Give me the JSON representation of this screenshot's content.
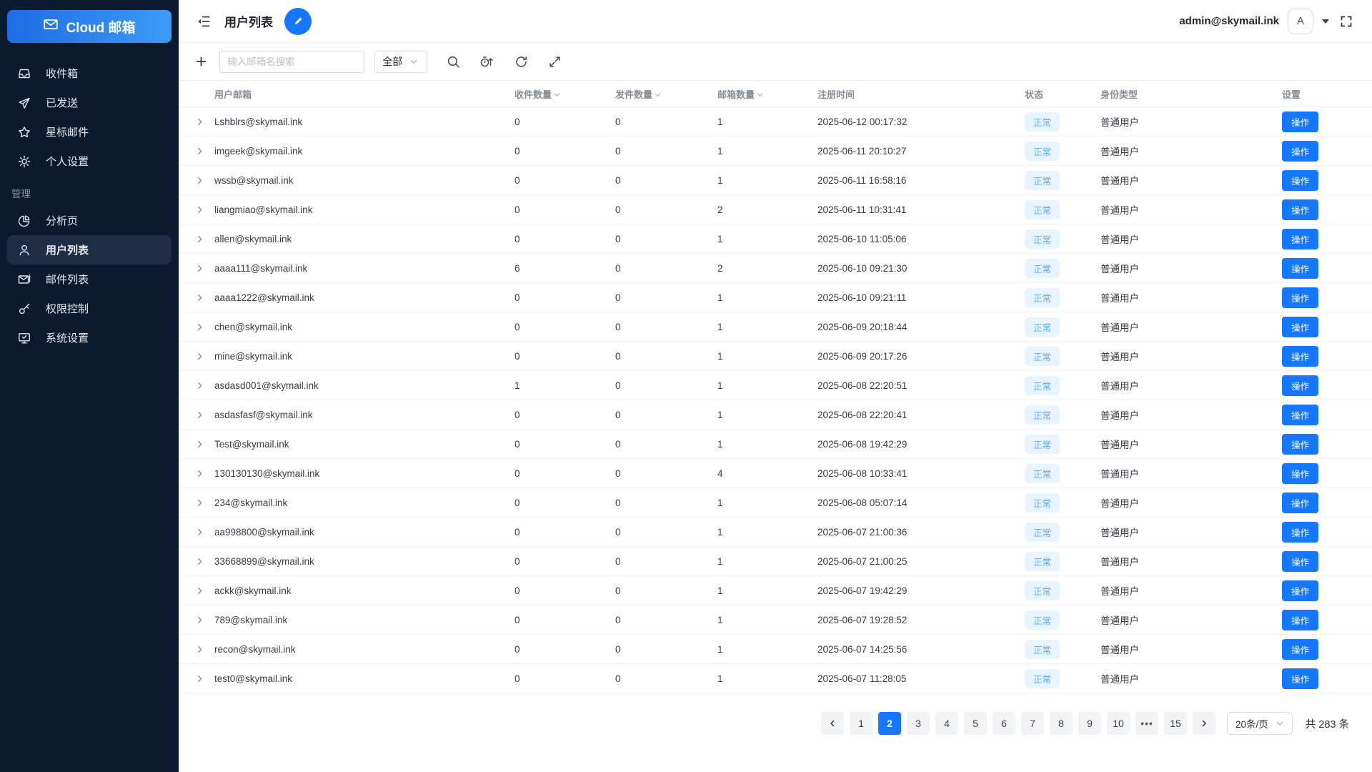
{
  "colors": {
    "accent": "#1677ff",
    "sidebar_bg": "#0c1a30",
    "logo_gradient_start": "#1f6be4",
    "logo_gradient_end": "#3c9cf5",
    "status_badge_bg": "#e8f4ff",
    "status_badge_text": "#64a8ee"
  },
  "sidebar": {
    "logo_label": "Cloud 邮箱",
    "items": [
      {
        "label": "收件箱",
        "icon": "inbox-icon"
      },
      {
        "label": "已发送",
        "icon": "send-icon"
      },
      {
        "label": "星标邮件",
        "icon": "star-icon"
      },
      {
        "label": "个人设置",
        "icon": "gear-icon"
      }
    ],
    "section_label": "管理",
    "admin_items": [
      {
        "label": "分析页",
        "icon": "pie-chart-icon",
        "active": false
      },
      {
        "label": "用户列表",
        "icon": "user-icon",
        "active": true
      },
      {
        "label": "邮件列表",
        "icon": "mail-list-icon",
        "active": false
      },
      {
        "label": "权限控制",
        "icon": "key-icon",
        "active": false
      },
      {
        "label": "系统设置",
        "icon": "system-settings-icon",
        "active": false
      }
    ]
  },
  "topbar": {
    "title": "用户列表",
    "account_email": "admin@skymail.ink",
    "avatar_letter": "A"
  },
  "toolbar": {
    "add_label": "+",
    "search_placeholder": "输入邮箱名搜索",
    "filter_value": "全部"
  },
  "table": {
    "headers": [
      {
        "label": "用户邮箱",
        "sortable": false
      },
      {
        "label": "收件数量",
        "sortable": true
      },
      {
        "label": "发件数量",
        "sortable": true
      },
      {
        "label": "邮箱数量",
        "sortable": true
      },
      {
        "label": "注册时间",
        "sortable": false
      },
      {
        "label": "状态",
        "sortable": false
      },
      {
        "label": "身份类型",
        "sortable": false
      },
      {
        "label": "设置",
        "sortable": false
      }
    ],
    "action_label": "操作",
    "rows": [
      {
        "email": "Lshblrs@skymail.ink",
        "inbox_count": "0",
        "sent_count": "0",
        "mailbox_count": "1",
        "registered_at": "2025-06-12 00:17:32",
        "status": "正常",
        "role": "普通用户"
      },
      {
        "email": "imgeek@skymail.ink",
        "inbox_count": "0",
        "sent_count": "0",
        "mailbox_count": "1",
        "registered_at": "2025-06-11 20:10:27",
        "status": "正常",
        "role": "普通用户"
      },
      {
        "email": "wssb@skymail.ink",
        "inbox_count": "0",
        "sent_count": "0",
        "mailbox_count": "1",
        "registered_at": "2025-06-11 16:58:16",
        "status": "正常",
        "role": "普通用户"
      },
      {
        "email": "liangmiao@skymail.ink",
        "inbox_count": "0",
        "sent_count": "0",
        "mailbox_count": "2",
        "registered_at": "2025-06-11 10:31:41",
        "status": "正常",
        "role": "普通用户"
      },
      {
        "email": "allen@skymail.ink",
        "inbox_count": "0",
        "sent_count": "0",
        "mailbox_count": "1",
        "registered_at": "2025-06-10 11:05:06",
        "status": "正常",
        "role": "普通用户"
      },
      {
        "email": "aaaa111@skymail.ink",
        "inbox_count": "6",
        "sent_count": "0",
        "mailbox_count": "2",
        "registered_at": "2025-06-10 09:21:30",
        "status": "正常",
        "role": "普通用户"
      },
      {
        "email": "aaaa1222@skymail.ink",
        "inbox_count": "0",
        "sent_count": "0",
        "mailbox_count": "1",
        "registered_at": "2025-06-10 09:21:11",
        "status": "正常",
        "role": "普通用户"
      },
      {
        "email": "chen@skymail.ink",
        "inbox_count": "0",
        "sent_count": "0",
        "mailbox_count": "1",
        "registered_at": "2025-06-09 20:18:44",
        "status": "正常",
        "role": "普通用户"
      },
      {
        "email": "mine@skymail.ink",
        "inbox_count": "0",
        "sent_count": "0",
        "mailbox_count": "1",
        "registered_at": "2025-06-09 20:17:26",
        "status": "正常",
        "role": "普通用户"
      },
      {
        "email": "asdasd001@skymail.ink",
        "inbox_count": "1",
        "sent_count": "0",
        "mailbox_count": "1",
        "registered_at": "2025-06-08 22:20:51",
        "status": "正常",
        "role": "普通用户"
      },
      {
        "email": "asdasfasf@skymail.ink",
        "inbox_count": "0",
        "sent_count": "0",
        "mailbox_count": "1",
        "registered_at": "2025-06-08 22:20:41",
        "status": "正常",
        "role": "普通用户"
      },
      {
        "email": "Test@skymail.ink",
        "inbox_count": "0",
        "sent_count": "0",
        "mailbox_count": "1",
        "registered_at": "2025-06-08 19:42:29",
        "status": "正常",
        "role": "普通用户"
      },
      {
        "email": "130130130@skymail.ink",
        "inbox_count": "0",
        "sent_count": "0",
        "mailbox_count": "4",
        "registered_at": "2025-06-08 10:33:41",
        "status": "正常",
        "role": "普通用户"
      },
      {
        "email": "234@skymail.ink",
        "inbox_count": "0",
        "sent_count": "0",
        "mailbox_count": "1",
        "registered_at": "2025-06-08 05:07:14",
        "status": "正常",
        "role": "普通用户"
      },
      {
        "email": "aa998800@skymail.ink",
        "inbox_count": "0",
        "sent_count": "0",
        "mailbox_count": "1",
        "registered_at": "2025-06-07 21:00:36",
        "status": "正常",
        "role": "普通用户"
      },
      {
        "email": "33668899@skymail.ink",
        "inbox_count": "0",
        "sent_count": "0",
        "mailbox_count": "1",
        "registered_at": "2025-06-07 21:00:25",
        "status": "正常",
        "role": "普通用户"
      },
      {
        "email": "ackk@skymail.ink",
        "inbox_count": "0",
        "sent_count": "0",
        "mailbox_count": "1",
        "registered_at": "2025-06-07 19:42:29",
        "status": "正常",
        "role": "普通用户"
      },
      {
        "email": "789@skymail.ink",
        "inbox_count": "0",
        "sent_count": "0",
        "mailbox_count": "1",
        "registered_at": "2025-06-07 19:28:52",
        "status": "正常",
        "role": "普通用户"
      },
      {
        "email": "recon@skymail.ink",
        "inbox_count": "0",
        "sent_count": "0",
        "mailbox_count": "1",
        "registered_at": "2025-06-07 14:25:56",
        "status": "正常",
        "role": "普通用户"
      },
      {
        "email": "test0@skymail.ink",
        "inbox_count": "0",
        "sent_count": "0",
        "mailbox_count": "1",
        "registered_at": "2025-06-07 11:28:05",
        "status": "正常",
        "role": "普通用户"
      }
    ]
  },
  "pagination": {
    "pages": [
      "1",
      "2",
      "3",
      "4",
      "5",
      "6",
      "7",
      "8",
      "9",
      "10",
      "•••",
      "15"
    ],
    "active_page": "2",
    "page_size": "20条/页",
    "total": "共 283 条"
  }
}
